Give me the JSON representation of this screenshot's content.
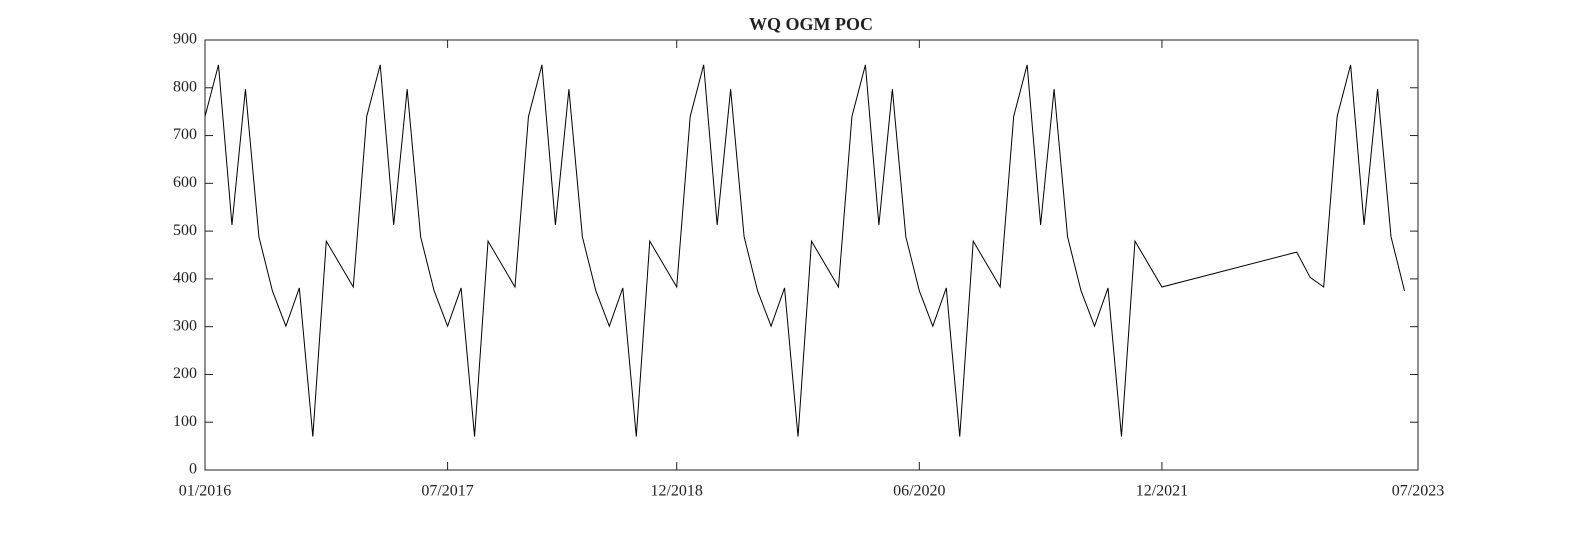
{
  "chart_data": {
    "type": "line",
    "title": "WQ OGM POC",
    "x": [
      "2016-01",
      "2016-02",
      "2016-03",
      "2016-04",
      "2016-05",
      "2016-06",
      "2016-07",
      "2016-08",
      "2016-09",
      "2016-10",
      "2016-12",
      "2017-01",
      "2017-02",
      "2017-03",
      "2017-04",
      "2017-05",
      "2017-06",
      "2017-07",
      "2017-08",
      "2017-09",
      "2017-10",
      "2017-12",
      "2018-01",
      "2018-02",
      "2018-03",
      "2018-04",
      "2018-05",
      "2018-06",
      "2018-07",
      "2018-08",
      "2018-09",
      "2018-10",
      "2018-12",
      "2019-01",
      "2019-02",
      "2019-03",
      "2019-04",
      "2019-05",
      "2019-06",
      "2019-07",
      "2019-08",
      "2019-09",
      "2019-10",
      "2019-12",
      "2020-01",
      "2020-02",
      "2020-03",
      "2020-04",
      "2020-05",
      "2020-06",
      "2020-07",
      "2020-08",
      "2020-09",
      "2020-10",
      "2020-12",
      "2021-01",
      "2021-02",
      "2021-03",
      "2021-04",
      "2021-05",
      "2021-06",
      "2021-07",
      "2021-08",
      "2021-09",
      "2021-10",
      "2021-12",
      "2022-10",
      "2022-11",
      "2022-12",
      "2023-01",
      "2023-02",
      "2023-03",
      "2023-04",
      "2023-05",
      "2023-06"
    ],
    "series": [
      {
        "color": "#000000",
        "values": [
          740,
          848,
          513,
          797,
          488,
          375,
          301,
          381,
          70,
          479,
          383,
          740,
          848,
          513,
          797,
          488,
          375,
          301,
          381,
          70,
          479,
          383,
          740,
          848,
          513,
          797,
          488,
          375,
          301,
          381,
          70,
          479,
          383,
          740,
          848,
          513,
          797,
          488,
          375,
          301,
          381,
          70,
          479,
          383,
          740,
          848,
          513,
          797,
          488,
          375,
          301,
          381,
          70,
          479,
          383,
          740,
          848,
          513,
          797,
          488,
          375,
          301,
          381,
          70,
          479,
          383,
          456,
          403,
          383,
          740,
          848,
          513,
          797,
          488,
          375
        ]
      }
    ],
    "xlim": [
      "2016-01",
      "2023-07"
    ],
    "xticks": [
      {
        "value": "2016-01",
        "label": "01/2016"
      },
      {
        "value": "2017-07",
        "label": "07/2017"
      },
      {
        "value": "2018-12",
        "label": "12/2018"
      },
      {
        "value": "2020-06",
        "label": "06/2020"
      },
      {
        "value": "2021-12",
        "label": "12/2021"
      },
      {
        "value": "2023-07",
        "label": "07/2023"
      }
    ],
    "ylim": [
      0,
      900
    ],
    "yticks": [
      0,
      100,
      200,
      300,
      400,
      500,
      600,
      700,
      800,
      900
    ],
    "grid": false
  }
}
